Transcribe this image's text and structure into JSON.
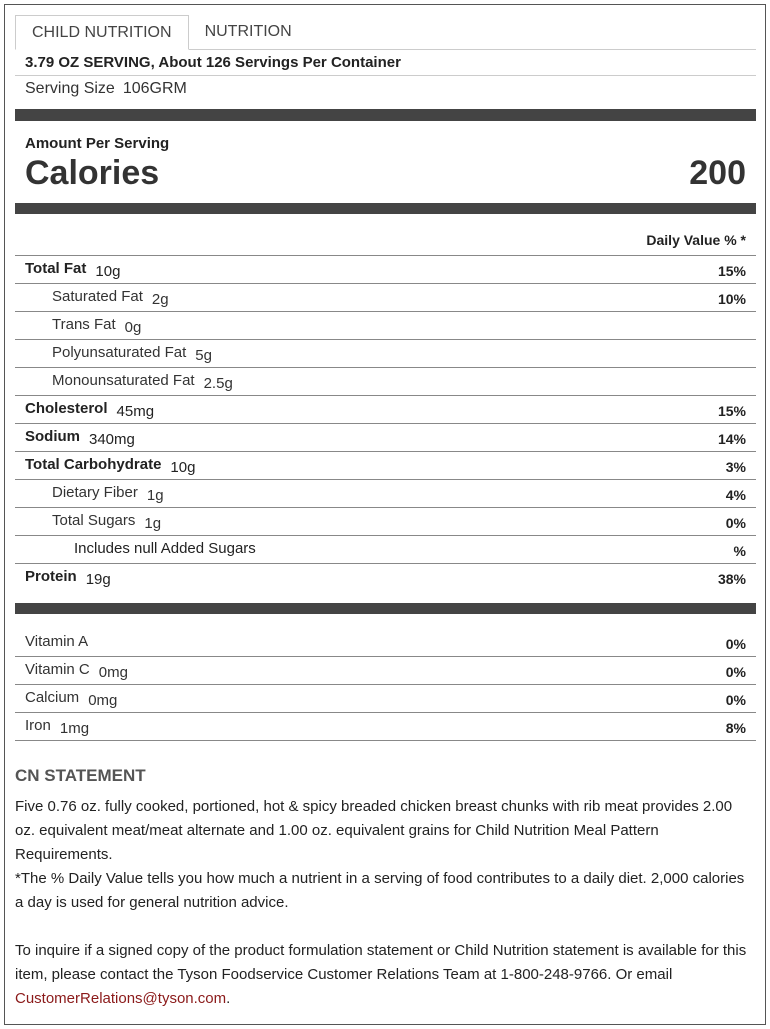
{
  "tabs": [
    "CHILD NUTRITION",
    "NUTRITION"
  ],
  "serving": {
    "header": "3.79 OZ SERVING, About 126 Servings Per Container",
    "size_label": "Serving Size",
    "size_value": "106GRM"
  },
  "calories": {
    "amount_label": "Amount Per Serving",
    "label": "Calories",
    "value": "200"
  },
  "daily_value_header": "Daily Value % *",
  "nutrients": [
    {
      "name": "Total Fat",
      "amount": "10g",
      "dv": "15%"
    },
    {
      "name": "Saturated Fat",
      "amount": "2g",
      "dv": "10%"
    },
    {
      "name": "Trans Fat",
      "amount": "0g"
    },
    {
      "name": "Polyunsaturated Fat",
      "amount": "5g"
    },
    {
      "name": "Monounsaturated Fat",
      "amount": "2.5g"
    },
    {
      "name": "Cholesterol",
      "amount": "45mg",
      "dv": "15%"
    },
    {
      "name": "Sodium",
      "amount": "340mg",
      "dv": "14%"
    },
    {
      "name": "Total Carbohydrate",
      "amount": "10g",
      "dv": "3%"
    },
    {
      "name": "Dietary Fiber",
      "amount": "1g",
      "dv": "4%"
    },
    {
      "name": "Total Sugars",
      "amount": "1g",
      "dv": "0%"
    },
    {
      "name": "Includes null Added Sugars",
      "dv": "%"
    },
    {
      "name": "Protein",
      "amount": "19g",
      "dv": "38%"
    }
  ],
  "vitamins": [
    {
      "name": "Vitamin A",
      "dv": "0%"
    },
    {
      "name": "Vitamin C",
      "amount": "0mg",
      "dv": "0%"
    },
    {
      "name": "Calcium",
      "amount": "0mg",
      "dv": "0%"
    },
    {
      "name": "Iron",
      "amount": "1mg",
      "dv": "8%"
    }
  ],
  "cn_statement": {
    "title": "CN STATEMENT",
    "paragraphs": [
      "Five 0.76 oz. fully cooked, portioned, hot & spicy breaded chicken breast chunks with rib meat provides 2.00 oz. equivalent meat/meat alternate and 1.00 oz. equivalent grains for Child Nutrition Meal Pattern Requirements.",
      "*The % Daily Value tells you how much a nutrient in a serving of food contributes to a daily diet. 2,000 calories a day is used for general nutrition advice."
    ],
    "contact": {
      "text": "To inquire if a signed copy of the product formulation statement or Child Nutrition statement is available for this item, please contact the Tyson Foodservice Customer Relations Team at 1-800-248-9766. Or email ",
      "email": "CustomerRelations@tyson.com",
      "end": "."
    }
  }
}
